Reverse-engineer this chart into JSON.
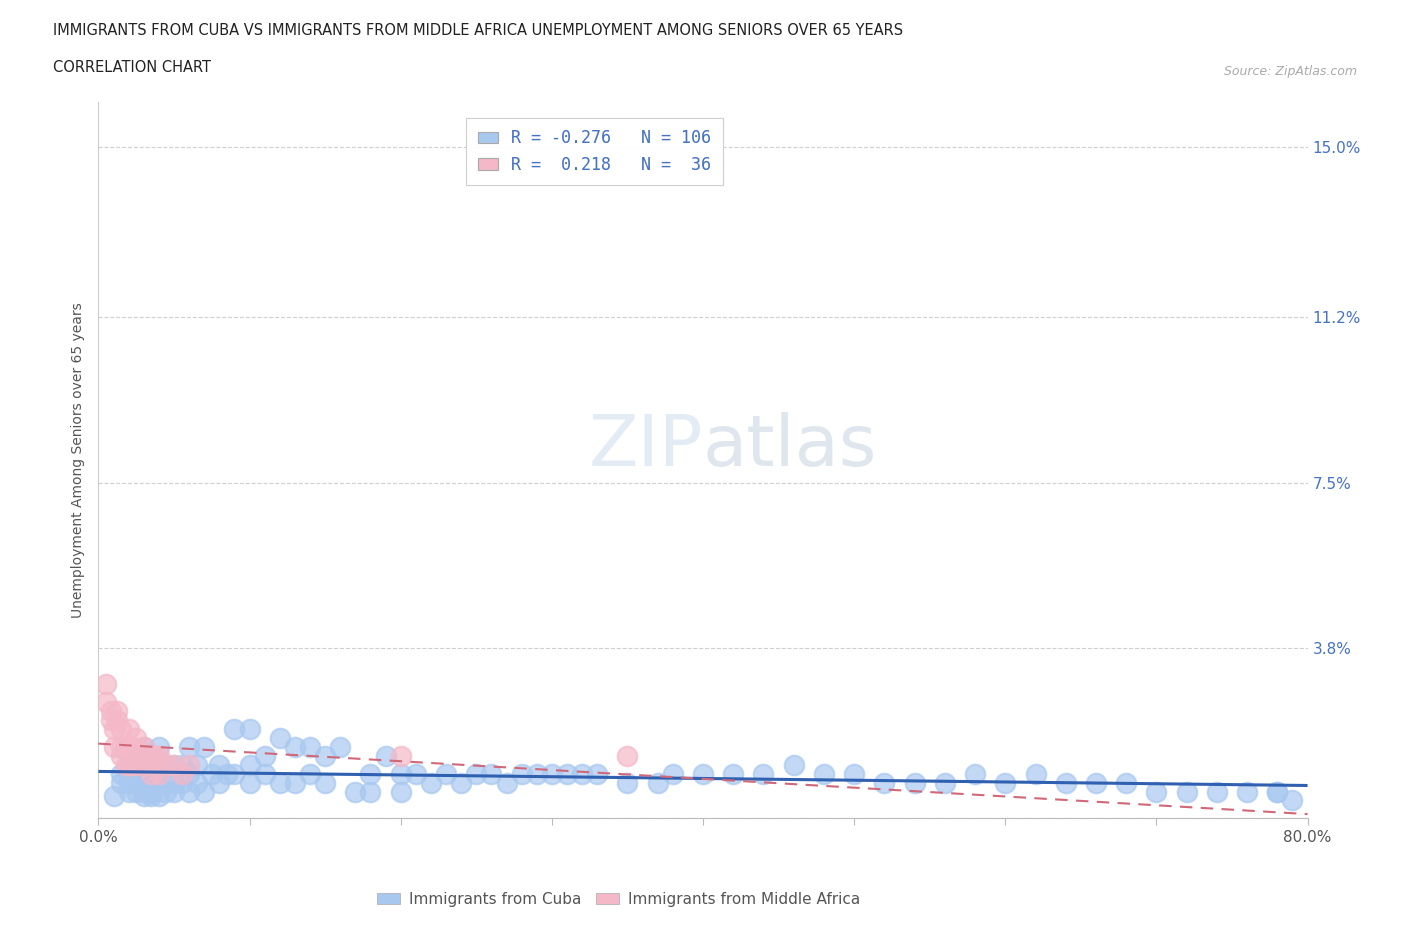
{
  "title_line1": "IMMIGRANTS FROM CUBA VS IMMIGRANTS FROM MIDDLE AFRICA UNEMPLOYMENT AMONG SENIORS OVER 65 YEARS",
  "title_line2": "CORRELATION CHART",
  "source_text": "Source: ZipAtlas.com",
  "ylabel": "Unemployment Among Seniors over 65 years",
  "watermark": "ZIPatlas",
  "cuba_R": -0.276,
  "cuba_N": 106,
  "africa_R": 0.218,
  "africa_N": 36,
  "cuba_color": "#a8c8f0",
  "africa_color": "#f4b8c8",
  "cuba_line_color": "#3060b0",
  "africa_line_color": "#d06878",
  "right_axis_color": "#4472c4",
  "xlim": [
    0.0,
    0.8
  ],
  "ylim": [
    0.0,
    0.16
  ],
  "right_yticks": [
    0.0,
    0.038,
    0.075,
    0.112,
    0.15
  ],
  "right_yticklabels": [
    "",
    "3.8%",
    "7.5%",
    "11.2%",
    "15.0%"
  ],
  "cuba_scatter_x": [
    0.01,
    0.015,
    0.015,
    0.02,
    0.02,
    0.02,
    0.02,
    0.025,
    0.025,
    0.025,
    0.025,
    0.03,
    0.03,
    0.03,
    0.03,
    0.03,
    0.03,
    0.03,
    0.035,
    0.035,
    0.035,
    0.035,
    0.04,
    0.04,
    0.04,
    0.04,
    0.04,
    0.045,
    0.045,
    0.045,
    0.05,
    0.05,
    0.05,
    0.055,
    0.055,
    0.06,
    0.06,
    0.06,
    0.065,
    0.065,
    0.07,
    0.07,
    0.075,
    0.08,
    0.08,
    0.085,
    0.09,
    0.09,
    0.1,
    0.1,
    0.1,
    0.11,
    0.11,
    0.12,
    0.12,
    0.13,
    0.13,
    0.14,
    0.14,
    0.15,
    0.15,
    0.16,
    0.17,
    0.18,
    0.18,
    0.19,
    0.2,
    0.2,
    0.21,
    0.22,
    0.23,
    0.24,
    0.25,
    0.26,
    0.27,
    0.28,
    0.29,
    0.3,
    0.31,
    0.32,
    0.33,
    0.35,
    0.37,
    0.38,
    0.4,
    0.42,
    0.44,
    0.46,
    0.48,
    0.5,
    0.52,
    0.54,
    0.56,
    0.58,
    0.6,
    0.62,
    0.64,
    0.66,
    0.68,
    0.7,
    0.72,
    0.74,
    0.76,
    0.78,
    0.78,
    0.79
  ],
  "cuba_scatter_y": [
    0.005,
    0.008,
    0.01,
    0.006,
    0.008,
    0.01,
    0.012,
    0.006,
    0.008,
    0.01,
    0.012,
    0.005,
    0.006,
    0.008,
    0.01,
    0.012,
    0.014,
    0.016,
    0.005,
    0.006,
    0.008,
    0.012,
    0.005,
    0.008,
    0.01,
    0.012,
    0.016,
    0.006,
    0.008,
    0.012,
    0.006,
    0.008,
    0.012,
    0.008,
    0.012,
    0.006,
    0.01,
    0.016,
    0.008,
    0.012,
    0.006,
    0.016,
    0.01,
    0.008,
    0.012,
    0.01,
    0.01,
    0.02,
    0.008,
    0.012,
    0.02,
    0.01,
    0.014,
    0.008,
    0.018,
    0.008,
    0.016,
    0.01,
    0.016,
    0.008,
    0.014,
    0.016,
    0.006,
    0.006,
    0.01,
    0.014,
    0.006,
    0.01,
    0.01,
    0.008,
    0.01,
    0.008,
    0.01,
    0.01,
    0.008,
    0.01,
    0.01,
    0.01,
    0.01,
    0.01,
    0.01,
    0.008,
    0.008,
    0.01,
    0.01,
    0.01,
    0.01,
    0.012,
    0.01,
    0.01,
    0.008,
    0.008,
    0.008,
    0.01,
    0.008,
    0.01,
    0.008,
    0.008,
    0.008,
    0.006,
    0.006,
    0.006,
    0.006,
    0.006,
    0.006,
    0.004
  ],
  "africa_scatter_x": [
    0.005,
    0.005,
    0.008,
    0.008,
    0.01,
    0.01,
    0.012,
    0.012,
    0.015,
    0.015,
    0.015,
    0.018,
    0.018,
    0.02,
    0.02,
    0.02,
    0.022,
    0.022,
    0.025,
    0.025,
    0.025,
    0.028,
    0.03,
    0.03,
    0.032,
    0.035,
    0.035,
    0.038,
    0.04,
    0.04,
    0.045,
    0.05,
    0.055,
    0.06,
    0.2,
    0.35
  ],
  "africa_scatter_y": [
    0.026,
    0.03,
    0.022,
    0.024,
    0.016,
    0.02,
    0.022,
    0.024,
    0.014,
    0.016,
    0.02,
    0.012,
    0.016,
    0.012,
    0.016,
    0.02,
    0.012,
    0.016,
    0.012,
    0.014,
    0.018,
    0.014,
    0.012,
    0.016,
    0.014,
    0.01,
    0.014,
    0.014,
    0.01,
    0.014,
    0.012,
    0.012,
    0.01,
    0.012,
    0.014,
    0.014
  ]
}
